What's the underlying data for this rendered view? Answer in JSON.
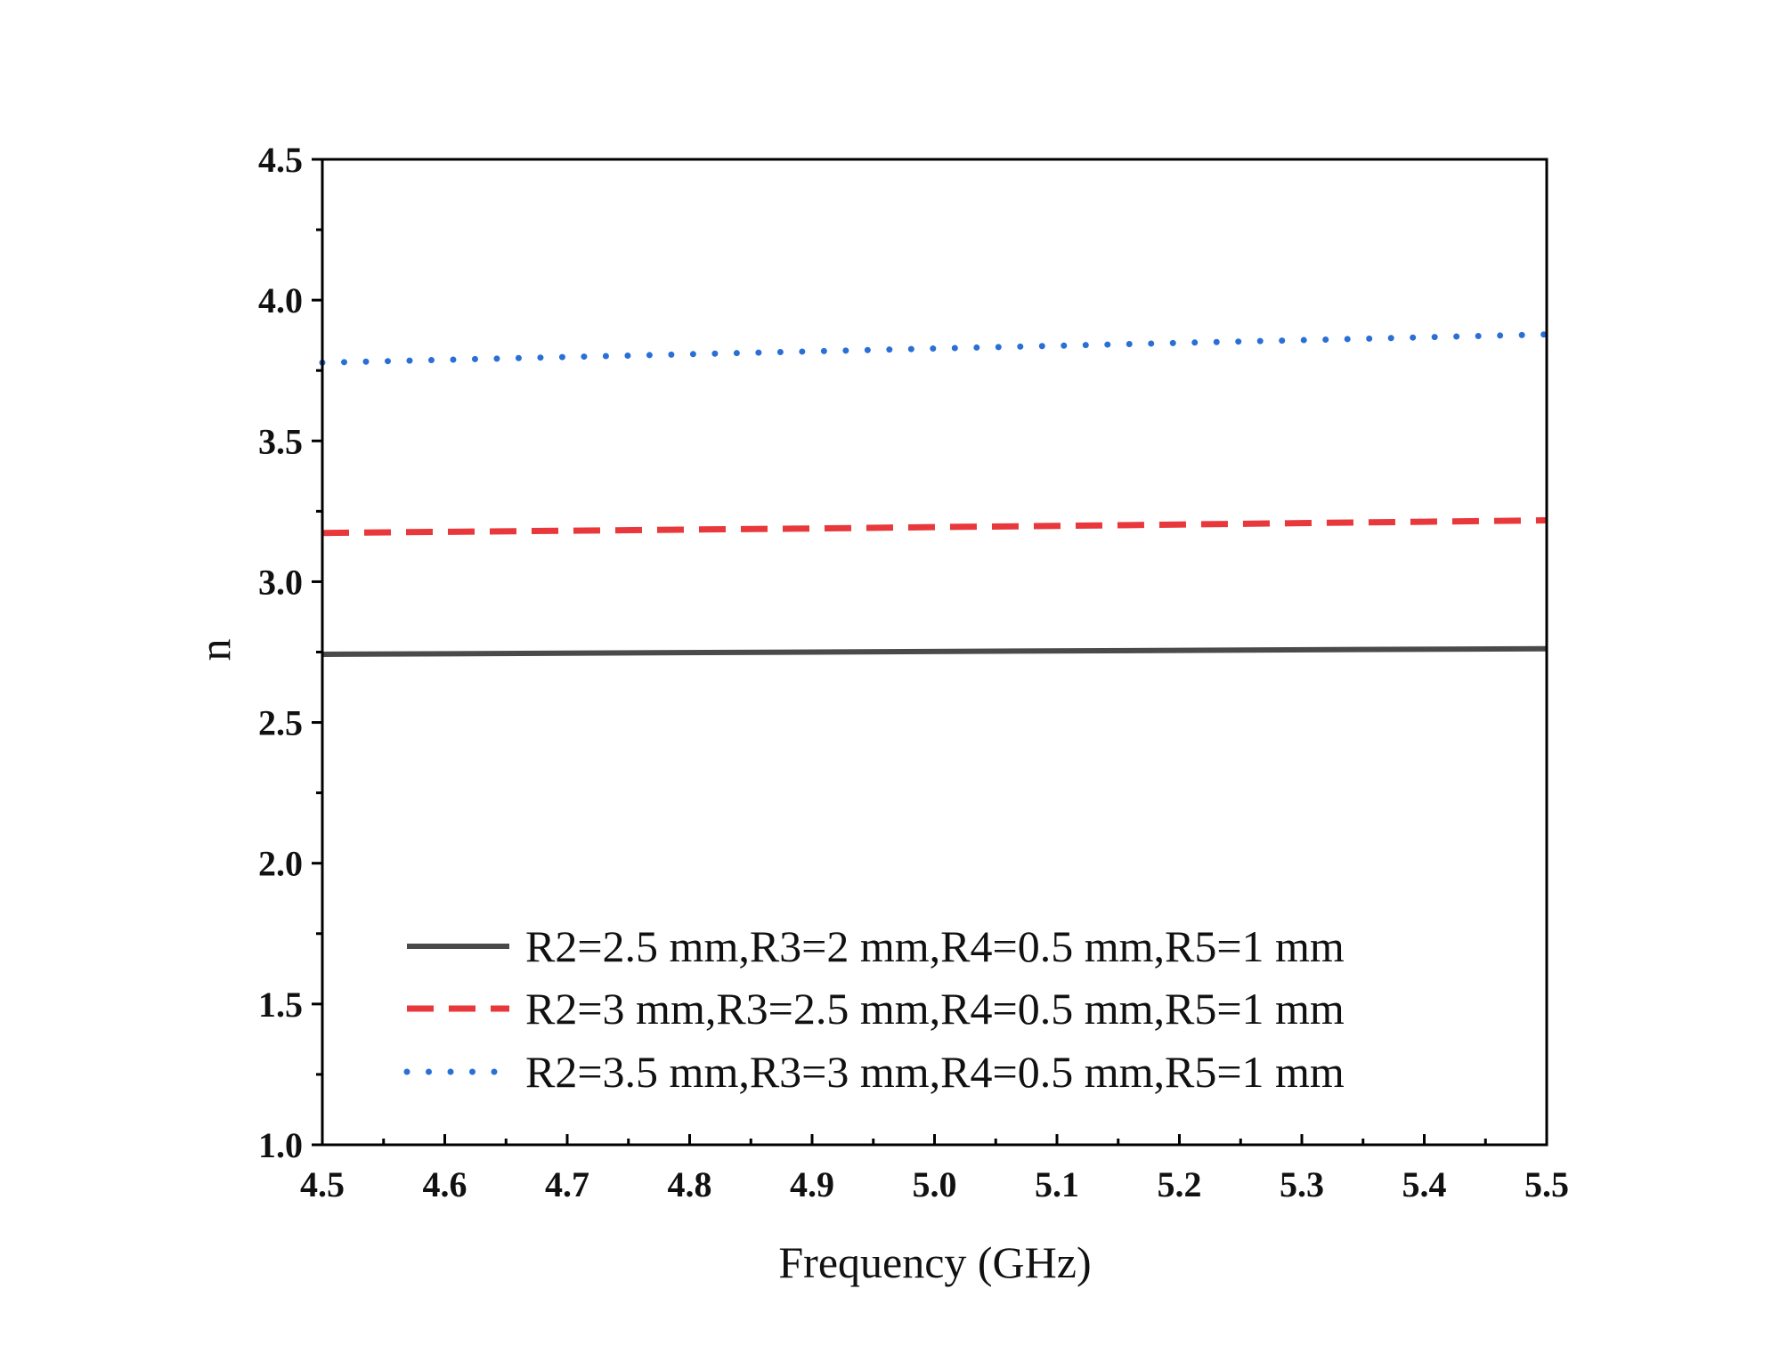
{
  "chart_data": {
    "type": "line",
    "title": "",
    "xlabel": "Frequency (GHz)",
    "ylabel": "n",
    "xlim": [
      4.5,
      5.5
    ],
    "ylim": [
      1.0,
      4.5
    ],
    "xticks": [
      "4.5",
      "4.6",
      "4.7",
      "4.8",
      "4.9",
      "5.0",
      "5.1",
      "5.2",
      "5.3",
      "5.4",
      "5.5"
    ],
    "yticks": [
      "1.0",
      "1.5",
      "2.0",
      "2.5",
      "3.0",
      "3.5",
      "4.0",
      "4.5"
    ],
    "grid": false,
    "legend_position": "bottom-center",
    "series": [
      {
        "name": "R2=2.5 mm,R3=2 mm,R4=0.5 mm,R5=1 mm",
        "color": "#4a4a4a",
        "style": "solid",
        "x": [
          4.5,
          5.5
        ],
        "y": [
          2.742,
          2.762
        ]
      },
      {
        "name": "R2=3 mm,R3=2.5 mm,R4=0.5 mm,R5=1 mm",
        "color": "#e8383b",
        "style": "dashed",
        "x": [
          4.5,
          4.6,
          4.7,
          4.8,
          4.9,
          5.0,
          5.1,
          5.2,
          5.3,
          5.4,
          5.5
        ],
        "y": [
          3.173,
          3.177,
          3.181,
          3.185,
          3.189,
          3.194,
          3.198,
          3.203,
          3.208,
          3.213,
          3.218
        ]
      },
      {
        "name": "R2=3.5 mm,R3=3 mm,R4=0.5 mm,R5=1 mm",
        "color": "#2a6fd6",
        "style": "dotted",
        "x": [
          4.5,
          4.6,
          4.7,
          4.8,
          4.9,
          5.0,
          5.1,
          5.2,
          5.3,
          5.4,
          5.5
        ],
        "y": [
          3.778,
          3.788,
          3.798,
          3.808,
          3.818,
          3.828,
          3.838,
          3.848,
          3.858,
          3.868,
          3.878
        ]
      }
    ]
  }
}
